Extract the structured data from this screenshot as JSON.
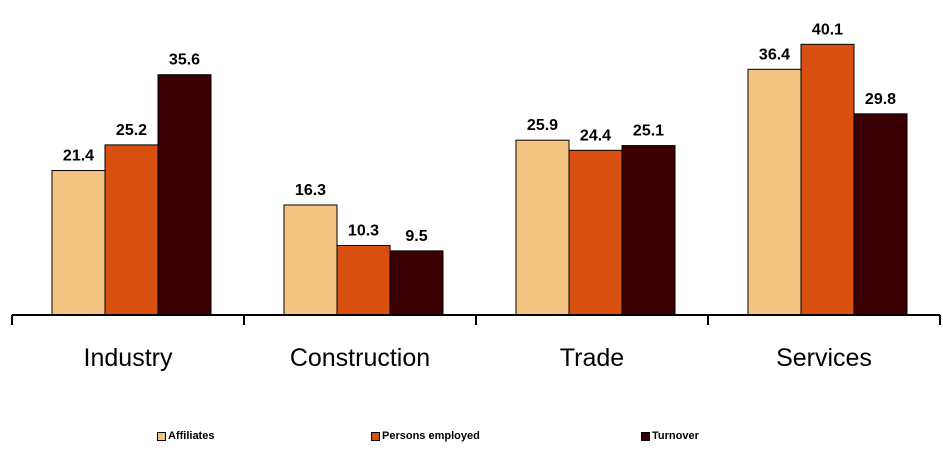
{
  "chart_data": {
    "type": "bar",
    "categories": [
      "Industry",
      "Construction",
      "Trade",
      "Services"
    ],
    "series": [
      {
        "name": "Affiliates",
        "values": [
          21.4,
          16.3,
          25.9,
          36.4
        ],
        "labels": [
          "21.4",
          "16.3",
          "25.9",
          "36.4"
        ],
        "color": "#F5C382"
      },
      {
        "name": "Persons employed",
        "values": [
          25.2,
          10.3,
          24.4,
          40.1
        ],
        "labels": [
          "25.2",
          "10.3",
          "24.4",
          "40.1"
        ],
        "color": "#D84F0F"
      },
      {
        "name": "Turnover",
        "values": [
          35.6,
          9.5,
          25.1,
          29.8
        ],
        "labels": [
          "35.6",
          "9.5",
          "25.1",
          "29.8"
        ],
        "color": "#3B0003"
      }
    ],
    "title": "",
    "xlabel": "",
    "ylabel": "",
    "ylim": [
      0,
      42
    ],
    "grid": false,
    "legend_position": "bottom"
  }
}
